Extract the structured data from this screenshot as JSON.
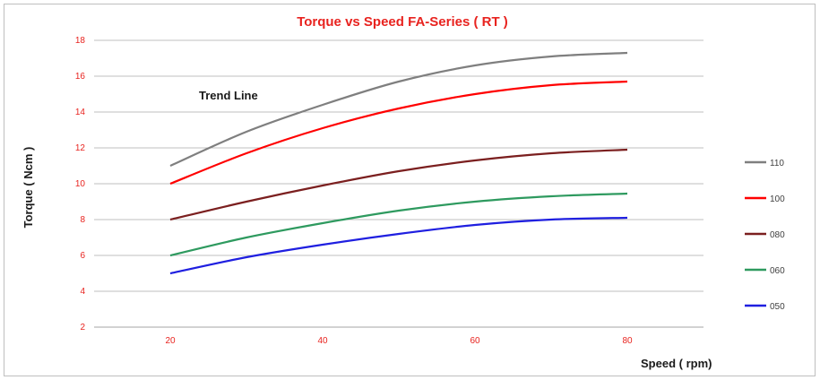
{
  "chart_data": {
    "type": "line",
    "title": "Torque vs Speed FA-Series ( RT )",
    "xlabel": "Speed  ( rpm)",
    "ylabel": "Torque ( Ncm )",
    "xlim": [
      10,
      90
    ],
    "ylim": [
      2,
      18
    ],
    "xticks": [
      "20",
      "40",
      "60",
      "80"
    ],
    "yticks": [
      "2",
      "4",
      "6",
      "8",
      "10",
      "12",
      "14",
      "16",
      "18"
    ],
    "grid": "horizontal",
    "legend_position": "right",
    "annotation": "Trend Line",
    "x": [
      20,
      30,
      40,
      50,
      60,
      70,
      80
    ],
    "series": [
      {
        "name": "110",
        "color": "#7f7f7f",
        "values": [
          11.0,
          12.9,
          14.4,
          15.7,
          16.6,
          17.1,
          17.3
        ]
      },
      {
        "name": "100",
        "color": "#ff0000",
        "values": [
          10.0,
          11.7,
          13.1,
          14.2,
          15.0,
          15.5,
          15.7
        ]
      },
      {
        "name": "080",
        "color": "#7b1f1f",
        "values": [
          8.0,
          9.0,
          9.9,
          10.7,
          11.3,
          11.7,
          11.9
        ]
      },
      {
        "name": "060",
        "color": "#2e9a5f",
        "values": [
          6.0,
          7.0,
          7.8,
          8.5,
          9.0,
          9.3,
          9.45
        ]
      },
      {
        "name": "050",
        "color": "#1f1fe0",
        "values": [
          5.0,
          5.9,
          6.6,
          7.2,
          7.7,
          8.0,
          8.1
        ]
      }
    ]
  }
}
